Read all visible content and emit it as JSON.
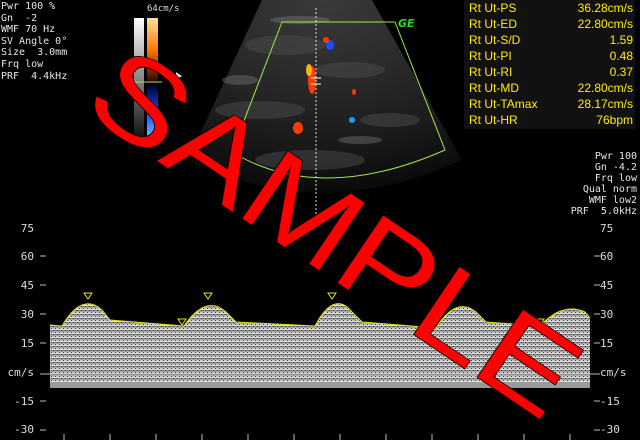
{
  "left_params": [
    "Pwr 100 %",
    "Gn  -2",
    "WMF 70 Hz",
    "SV Angle 0°",
    "Size  3.0mm",
    "Frq low",
    "PRF  4.4kHz"
  ],
  "right_params": [
    "Pwr 100",
    "Gn -4.2",
    "Frq low",
    "Qual norm",
    "WMF low2",
    "PRF  5.0kHz"
  ],
  "color_scale_label": "64cm/s",
  "logo_text": "GE",
  "measurements": [
    {
      "label": "Rt Ut-PS",
      "value": "36.28cm/s"
    },
    {
      "label": "Rt Ut-ED",
      "value": "22.80cm/s"
    },
    {
      "label": "Rt Ut-S/D",
      "value": "1.59"
    },
    {
      "label": "Rt Ut-PI",
      "value": "0.48"
    },
    {
      "label": "Rt Ut-RI",
      "value": "0.37"
    },
    {
      "label": "Rt Ut-MD",
      "value": "22.80cm/s"
    },
    {
      "label": "Rt Ut-TAmax",
      "value": "28.17cm/s"
    },
    {
      "label": "Rt Ut-HR",
      "value": "76bpm"
    }
  ],
  "doppler_axis": {
    "ticks": [
      "75",
      "60",
      "45",
      "30",
      "15",
      "cm/s",
      "-15",
      "-30"
    ],
    "tick_values": [
      75,
      60,
      45,
      30,
      15,
      0,
      -15,
      -30
    ]
  },
  "watermark_text": "SAMPLE",
  "colors": {
    "measurement_text": "#ffee00",
    "sector_outline": "#9fe84a",
    "envelope_trace": "#e6e600",
    "watermark": "#ff0000",
    "flow_red": "#ff3c00",
    "flow_blue": "#1a4dff"
  }
}
